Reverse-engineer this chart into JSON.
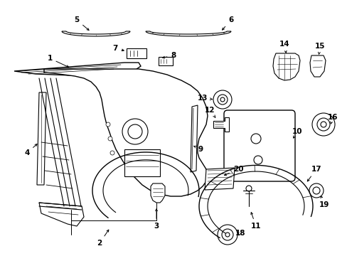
{
  "background_color": "#ffffff",
  "figure_width": 4.89,
  "figure_height": 3.6,
  "dpi": 100,
  "line_color": "#000000",
  "text_color": "#000000",
  "font_size": 7.5,
  "arrow_size": 5
}
